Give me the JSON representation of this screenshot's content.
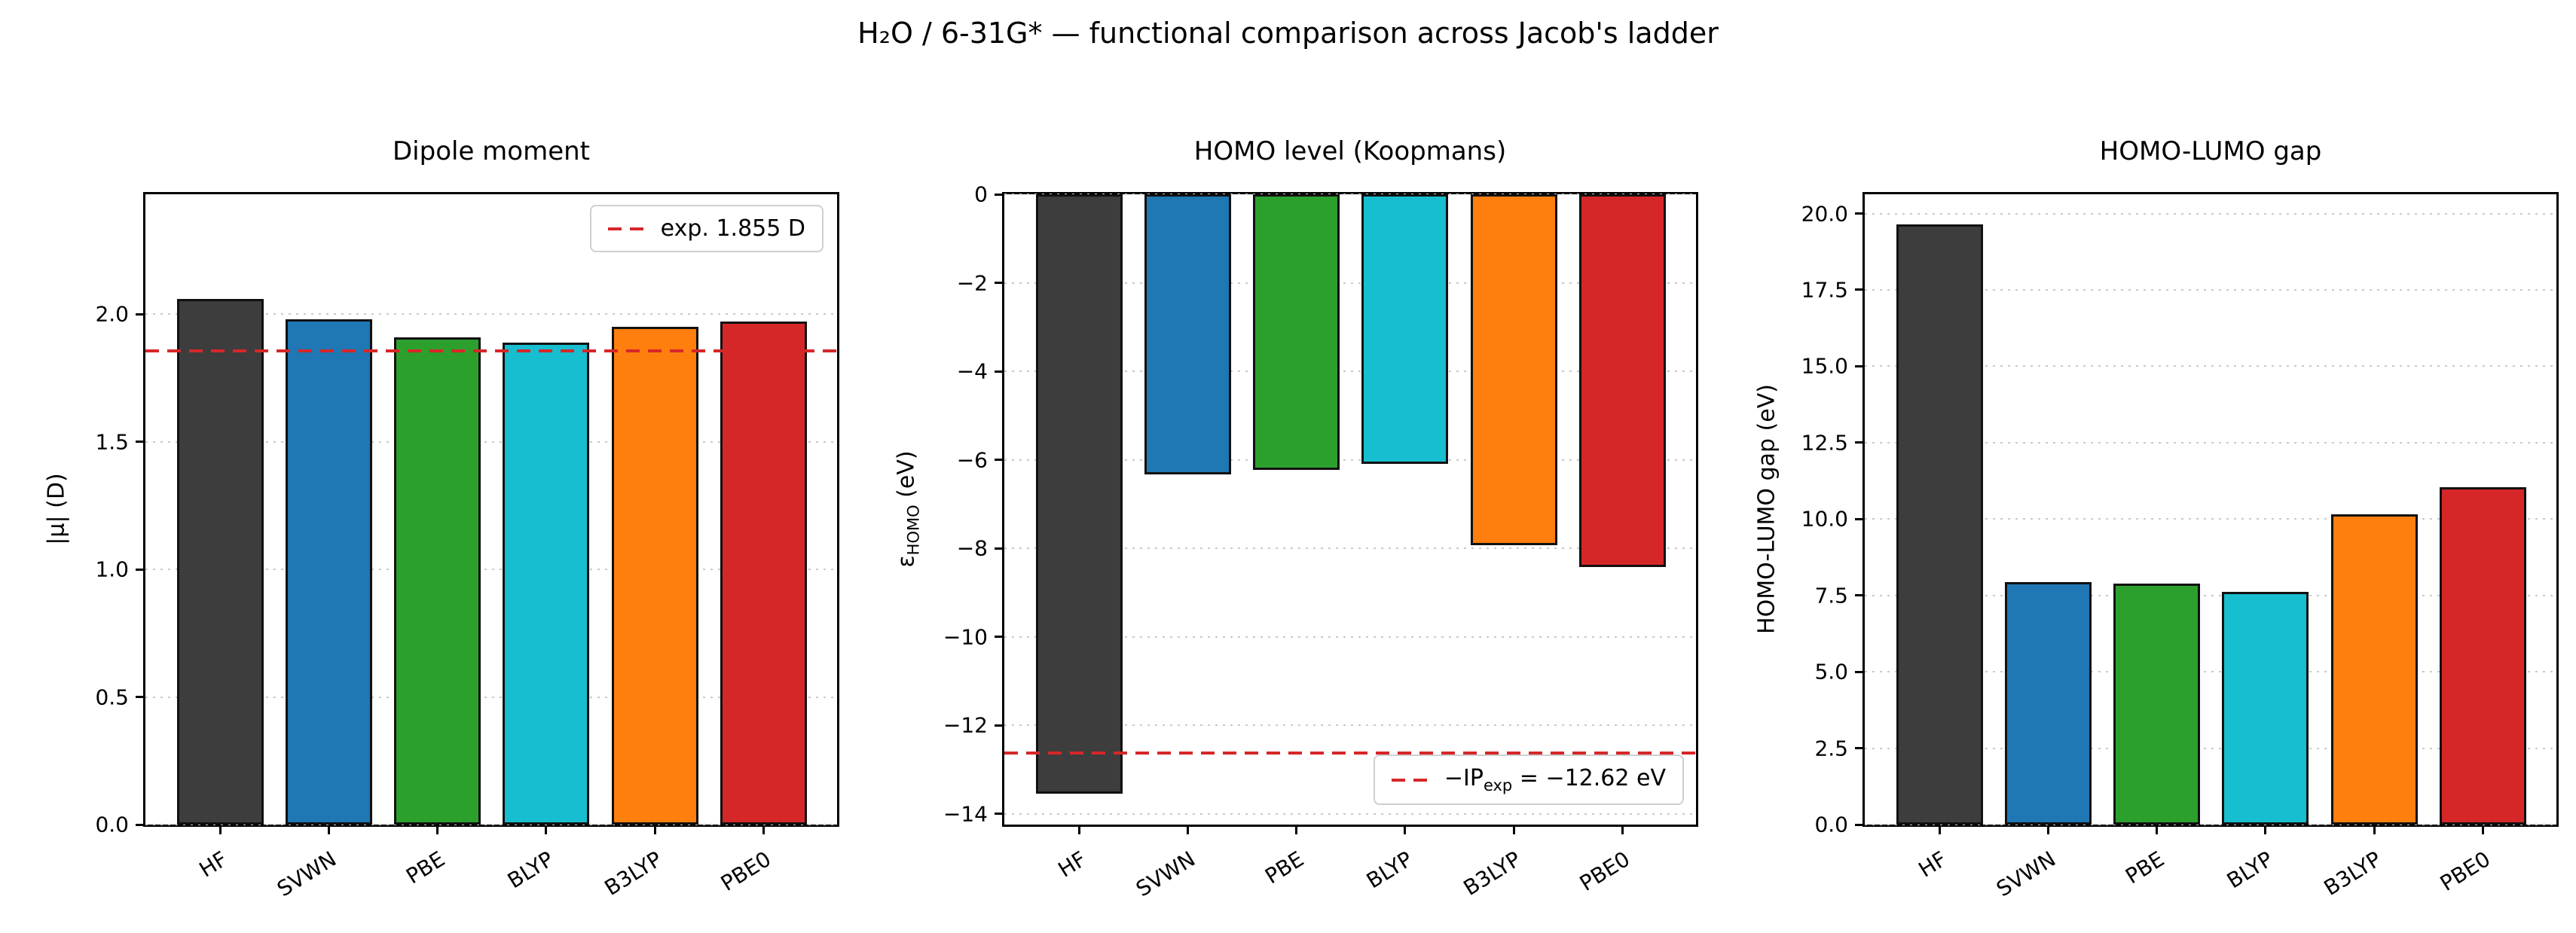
{
  "figure": {
    "suptitle": "H₂O / 6-31G* — functional comparison across Jacob's ladder"
  },
  "chart_data": [
    {
      "id": "dipole-moment",
      "type": "bar",
      "title": "Dipole moment",
      "ylabel": "|μ| (D)",
      "categories": [
        "HF",
        "SVWN",
        "PBE",
        "BLYP",
        "B3LYP",
        "PBE0"
      ],
      "values": [
        2.06,
        1.98,
        1.91,
        1.89,
        1.95,
        1.97
      ],
      "bar_colors": [
        "#3d3d3d",
        "#1f77b4",
        "#2ca02c",
        "#17becf",
        "#ff7f0e",
        "#d62728"
      ],
      "ylim": [
        0,
        2.47
      ],
      "grid": true,
      "yticks": {
        "values": [
          0.0,
          0.5,
          1.0,
          1.5,
          2.0
        ],
        "labels": [
          "0.0",
          "0.5",
          "1.0",
          "1.5",
          "2.0"
        ]
      },
      "ref_line": {
        "value": 1.855,
        "style": "dashed",
        "color": "#d62728",
        "label": "exp. 1.855 D"
      },
      "legend_position": "upper-right"
    },
    {
      "id": "homo-level",
      "type": "bar",
      "title": "HOMO level (Koopmans)",
      "ylabel": "εHOMO (eV)",
      "ylabel_parts": {
        "pre": "ε",
        "sub": "HOMO",
        "post": " (eV)"
      },
      "categories": [
        "HF",
        "SVWN",
        "PBE",
        "BLYP",
        "B3LYP",
        "PBE0"
      ],
      "values": [
        -13.55,
        -6.33,
        -6.22,
        -6.09,
        -7.92,
        -8.43
      ],
      "bar_colors": [
        "#3d3d3d",
        "#1f77b4",
        "#2ca02c",
        "#17becf",
        "#ff7f0e",
        "#d62728"
      ],
      "ylim": [
        -14.24,
        0
      ],
      "grid": true,
      "yticks": {
        "values": [
          0,
          -2,
          -4,
          -6,
          -8,
          -10,
          -12,
          -14
        ],
        "labels": [
          "0",
          "−2",
          "−4",
          "−6",
          "−8",
          "−10",
          "−12",
          "−14"
        ]
      },
      "ref_line": {
        "value": -12.62,
        "style": "dashed",
        "color": "#d62728",
        "label": "−IPexp = −12.62 eV",
        "label_parts": {
          "pre": "−IP",
          "sub": "exp",
          "post": " = −12.62 eV"
        }
      },
      "legend_position": "lower-right"
    },
    {
      "id": "homo-lumo-gap",
      "type": "bar",
      "title": "HOMO-LUMO gap",
      "ylabel": "HOMO-LUMO gap (eV)",
      "categories": [
        "HF",
        "SVWN",
        "PBE",
        "BLYP",
        "B3LYP",
        "PBE0"
      ],
      "values": [
        19.65,
        7.94,
        7.88,
        7.62,
        10.15,
        11.04
      ],
      "bar_colors": [
        "#3d3d3d",
        "#1f77b4",
        "#2ca02c",
        "#17becf",
        "#ff7f0e",
        "#d62728"
      ],
      "ylim": [
        0,
        20.63
      ],
      "grid": true,
      "yticks": {
        "values": [
          0.0,
          2.5,
          5.0,
          7.5,
          10.0,
          12.5,
          15.0,
          17.5,
          20.0
        ],
        "labels": [
          "0.0",
          "2.5",
          "5.0",
          "7.5",
          "10.0",
          "12.5",
          "15.0",
          "17.5",
          "20.0"
        ]
      },
      "ref_line": null,
      "legend_position": null
    }
  ]
}
